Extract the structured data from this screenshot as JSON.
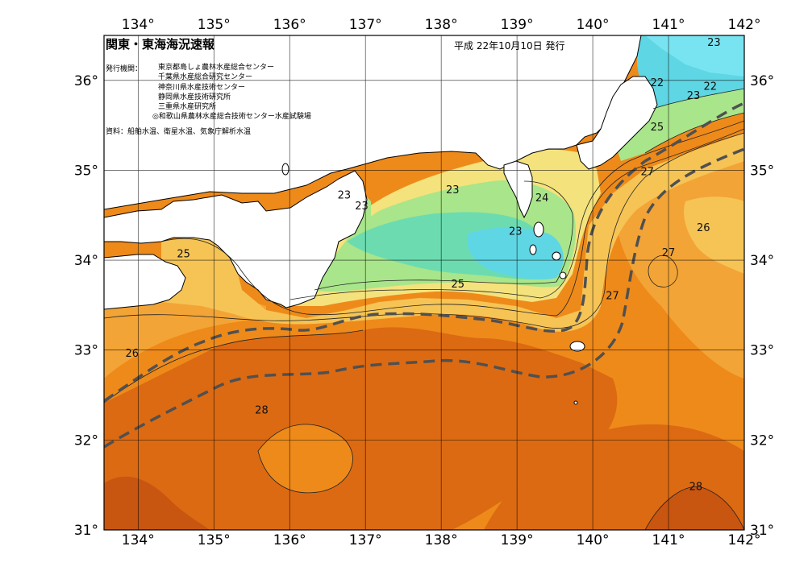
{
  "title": "関東・東海海況速報",
  "date": "平成 22年10月10日 発行",
  "issuers": {
    "label": "発行機関：",
    "items": [
      "東京都島しょ農林水産総合センター",
      "千葉県水産総合研究センター",
      "神奈川県水産技術センター",
      "静岡県水産技術研究所",
      "三重県水産研究所",
      "◎和歌山県農林水産総合技術センター水産試験場"
    ]
  },
  "sources": "資料：船舶水温、衛星水温、気象庁解析水温",
  "axes": {
    "lon": [
      "134°",
      "135°",
      "136°",
      "137°",
      "138°",
      "139°",
      "140°",
      "141°",
      "142°"
    ],
    "lat_left": [
      "36°",
      "35°",
      "34°",
      "33°",
      "32°",
      "31°"
    ],
    "lat_right": [
      "36°",
      "35°",
      "34°",
      "33°",
      "32°",
      "31°"
    ]
  },
  "contour_labels": [
    {
      "text": "23",
      "lon": 141.6,
      "lat": 36.42
    },
    {
      "text": "22",
      "lon": 140.85,
      "lat": 35.97
    },
    {
      "text": "22",
      "lon": 141.55,
      "lat": 35.93
    },
    {
      "text": "23",
      "lon": 141.33,
      "lat": 35.83
    },
    {
      "text": "25",
      "lon": 140.85,
      "lat": 35.48
    },
    {
      "text": "27",
      "lon": 140.72,
      "lat": 34.98
    },
    {
      "text": "23",
      "lon": 136.72,
      "lat": 34.72
    },
    {
      "text": "23",
      "lon": 136.95,
      "lat": 34.6
    },
    {
      "text": "23",
      "lon": 138.15,
      "lat": 34.78
    },
    {
      "text": "24",
      "lon": 139.33,
      "lat": 34.69
    },
    {
      "text": "23",
      "lon": 138.98,
      "lat": 34.32
    },
    {
      "text": "26",
      "lon": 141.46,
      "lat": 34.36
    },
    {
      "text": "27",
      "lon": 141.0,
      "lat": 34.08
    },
    {
      "text": "25",
      "lon": 134.6,
      "lat": 34.07
    },
    {
      "text": "25",
      "lon": 138.22,
      "lat": 33.73
    },
    {
      "text": "27",
      "lon": 140.26,
      "lat": 33.6
    },
    {
      "text": "26",
      "lon": 133.92,
      "lat": 32.96
    },
    {
      "text": "28",
      "lon": 135.63,
      "lat": 32.33
    },
    {
      "text": "28",
      "lon": 141.36,
      "lat": 31.48
    }
  ],
  "colors": {
    "sea_27": "#ee8a1a",
    "sea_28": "#dc6a12",
    "sea_26": "#f3a436",
    "sea_25": "#f6c455",
    "sea_24": "#f4e27c",
    "sea_23": "#a9e58a",
    "sea_22": "#6cdcb0",
    "sea_21": "#5fd6e3",
    "kuroshio_axis": "#505050",
    "land": "#ffffff"
  }
}
